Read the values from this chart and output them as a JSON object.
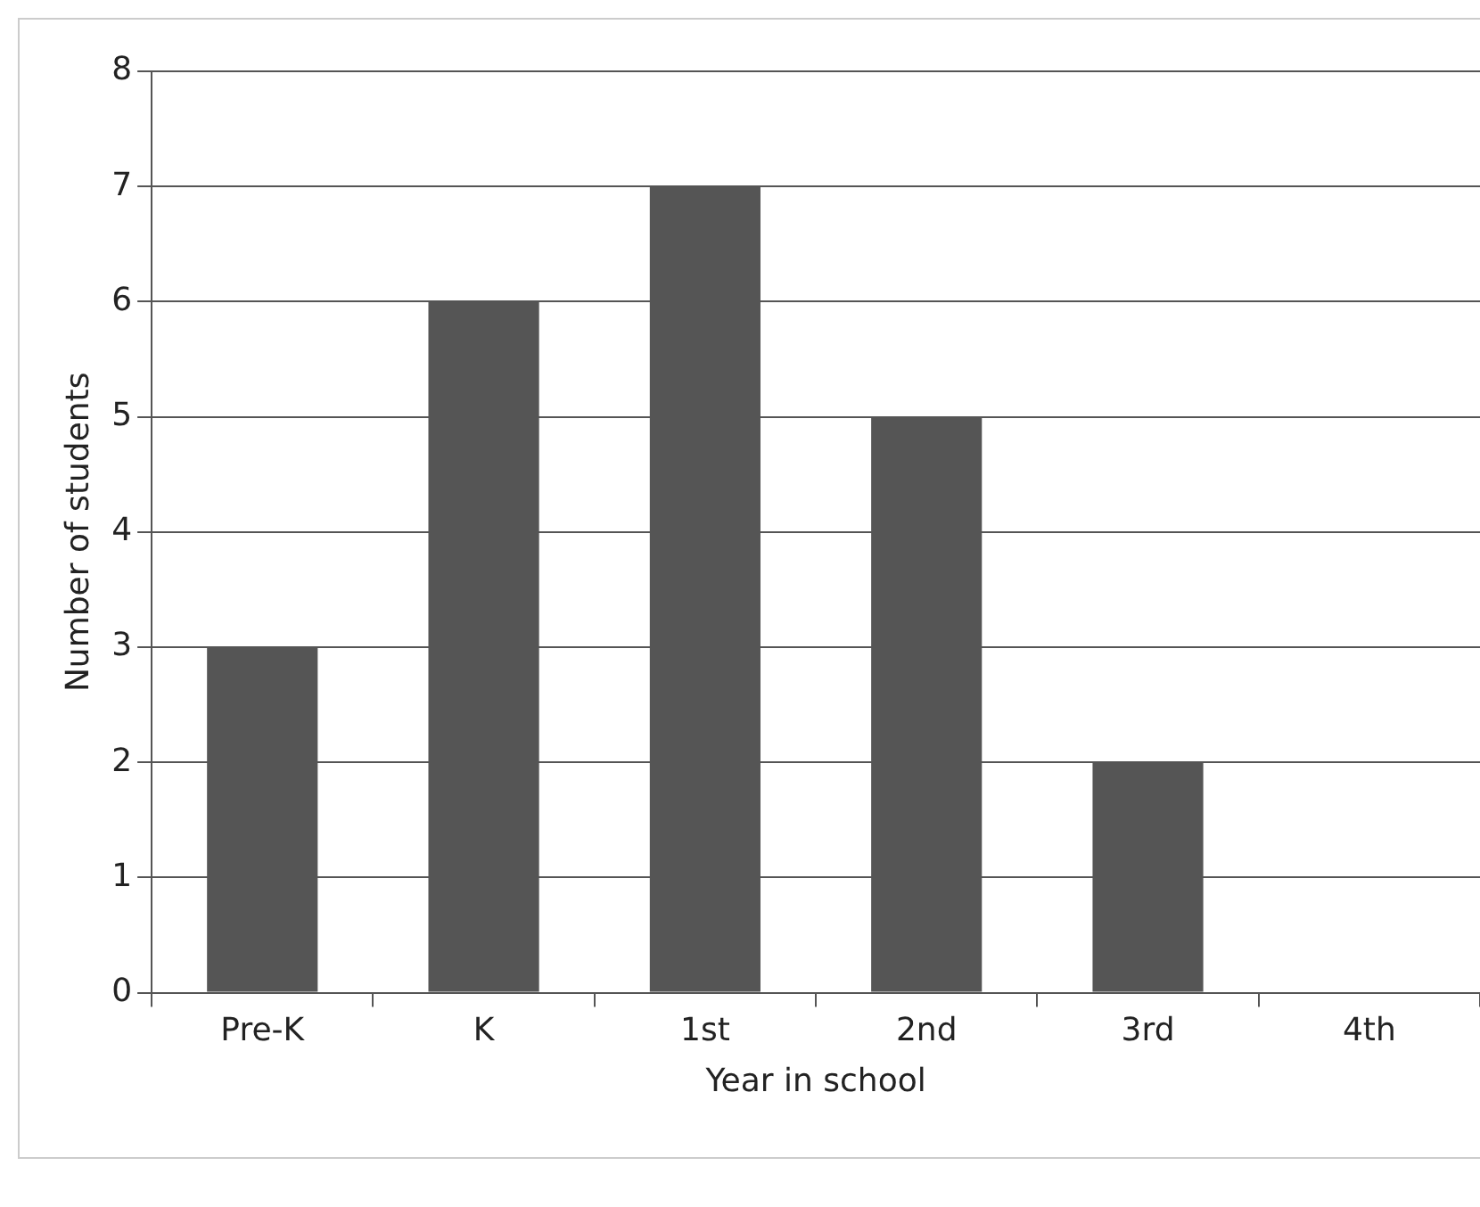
{
  "chart_data": {
    "type": "bar",
    "xlabel": "Year in school",
    "ylabel": "Number of students",
    "categories": [
      "Pre-K",
      "K",
      "1st",
      "2nd",
      "3rd",
      "4th"
    ],
    "values": [
      3,
      6,
      7,
      5,
      2,
      0
    ],
    "color": "#555555",
    "ylim": [
      0,
      8
    ],
    "yticks": [
      0,
      1,
      2,
      3,
      4,
      5,
      6,
      7,
      8
    ],
    "grid": "y",
    "legend": false
  }
}
